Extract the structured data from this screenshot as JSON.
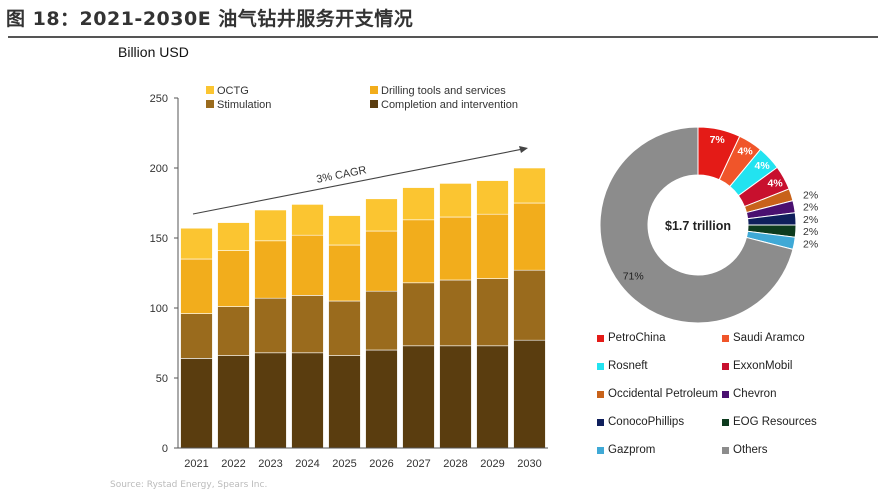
{
  "page": {
    "title": "图 18：2021-2030E 油气钻井服务开支情况",
    "unit_label": "Billion USD",
    "source": "Source: Rystad Energy, Spears Inc."
  },
  "chart_data": [
    {
      "type": "bar",
      "stacked": true,
      "title": "",
      "ylabel": "Billion USD",
      "xlabel": "",
      "ylim": [
        0,
        250
      ],
      "yticks": [
        0,
        50,
        100,
        150,
        200,
        250
      ],
      "categories": [
        "2021",
        "2022",
        "2023",
        "2024",
        "2025",
        "2026",
        "2027",
        "2028",
        "2029",
        "2030"
      ],
      "series": [
        {
          "name": "Completion and intervention",
          "color": "#5a3d0f",
          "values": [
            64,
            66,
            68,
            68,
            66,
            70,
            73,
            73,
            73,
            77
          ]
        },
        {
          "name": "Stimulation",
          "color": "#9a6b1d",
          "values": [
            32,
            35,
            39,
            41,
            39,
            42,
            45,
            47,
            48,
            50
          ]
        },
        {
          "name": "Drilling tools and services",
          "color": "#f2ad1c",
          "values": [
            39,
            40,
            41,
            43,
            40,
            43,
            45,
            45,
            46,
            48
          ]
        },
        {
          "name": "OCTG",
          "color": "#fbc531",
          "values": [
            22,
            20,
            22,
            22,
            21,
            23,
            23,
            24,
            24,
            25
          ]
        }
      ],
      "legend_order": [
        "OCTG",
        "Drilling tools and services",
        "Stimulation",
        "Completion and intervention"
      ],
      "annotation": "3% CAGR"
    },
    {
      "type": "pie",
      "donut": true,
      "center_label": "$1.7 trillion",
      "slices": [
        {
          "name": "PetroChina",
          "value": 7,
          "label": "7%",
          "color": "#e41b17"
        },
        {
          "name": "Saudi Aramco",
          "value": 4,
          "label": "4%",
          "color": "#f0552a"
        },
        {
          "name": "Rosneft",
          "value": 4,
          "label": "4%",
          "color": "#22e3f0"
        },
        {
          "name": "ExxonMobil",
          "value": 4,
          "label": "4%",
          "color": "#c8102e"
        },
        {
          "name": "Occidental Petroleum",
          "value": 2,
          "label": "2%",
          "color": "#c8621a"
        },
        {
          "name": "Chevron",
          "value": 2,
          "label": "2%",
          "color": "#4a1070"
        },
        {
          "name": "ConocoPhillips",
          "value": 2,
          "label": "2%",
          "color": "#0f1f5c"
        },
        {
          "name": "EOG Resources",
          "value": 2,
          "label": "2%",
          "color": "#0d3b1e"
        },
        {
          "name": "Gazprom",
          "value": 2,
          "label": "2%",
          "color": "#3fa9d6"
        },
        {
          "name": "Others",
          "value": 71,
          "label": "71%",
          "color": "#8c8c8c"
        }
      ]
    }
  ]
}
